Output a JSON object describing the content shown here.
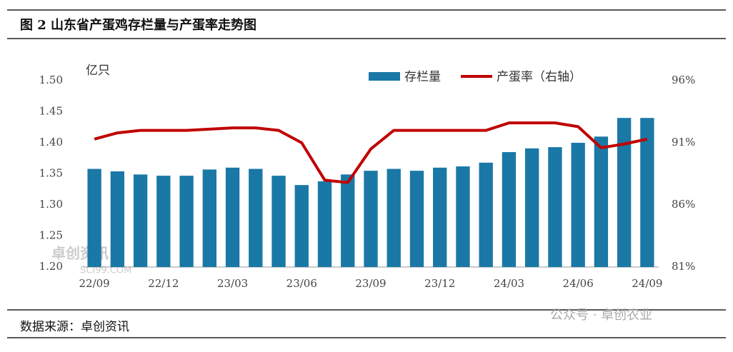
{
  "chart_data": {
    "type": "combo",
    "title": "图 2 山东省产蛋鸡存栏量与产蛋率走势图",
    "y_label": "亿只",
    "source": "数据来源：卓创资讯",
    "watermarks": [
      "卓创资讯",
      "SCI99.COM",
      "公众号 · 卓创农业"
    ],
    "categories": [
      "22/09",
      null,
      null,
      "22/12",
      null,
      null,
      "23/03",
      null,
      null,
      "23/06",
      null,
      null,
      "23/09",
      null,
      null,
      "23/12",
      null,
      null,
      "24/03",
      null,
      null,
      "24/06",
      null,
      null,
      "24/09"
    ],
    "series": [
      {
        "name": "存栏量",
        "type": "bar",
        "color": "#1a78a6",
        "values": [
          1.358,
          1.354,
          1.349,
          1.347,
          1.347,
          1.357,
          1.36,
          1.358,
          1.347,
          1.332,
          1.338,
          1.349,
          1.355,
          1.358,
          1.355,
          1.36,
          1.362,
          1.368,
          1.385,
          1.391,
          1.393,
          1.4,
          1.41,
          1.44,
          1.44
        ]
      },
      {
        "name": "产蛋率（右轴）",
        "type": "line",
        "axis": "y2",
        "color": "#c00000",
        "values": [
          91.3,
          91.8,
          92.0,
          92.0,
          92.0,
          92.1,
          92.2,
          92.2,
          92.0,
          91.0,
          88.0,
          87.8,
          90.5,
          92.0,
          92.0,
          92.0,
          92.0,
          92.0,
          92.6,
          92.6,
          92.6,
          92.3,
          90.6,
          90.9,
          91.3
        ]
      }
    ],
    "ylim": [
      1.2,
      1.5
    ],
    "yticks": [
      {
        "value": 1.2,
        "label": "1.20"
      },
      1.25,
      {
        "value": 1.3,
        "label": "1.30"
      },
      1.35,
      {
        "value": 1.4,
        "label": "1.40"
      },
      1.45,
      {
        "value": 1.5,
        "label": "1.50"
      }
    ],
    "y2lim": [
      81,
      96
    ],
    "y2ticks": [
      {
        "value": 81,
        "label": "81%"
      },
      {
        "value": 86,
        "label": "86%"
      },
      {
        "value": 91,
        "label": "91%"
      },
      {
        "value": 96,
        "label": "96%"
      }
    ],
    "grid": false
  }
}
